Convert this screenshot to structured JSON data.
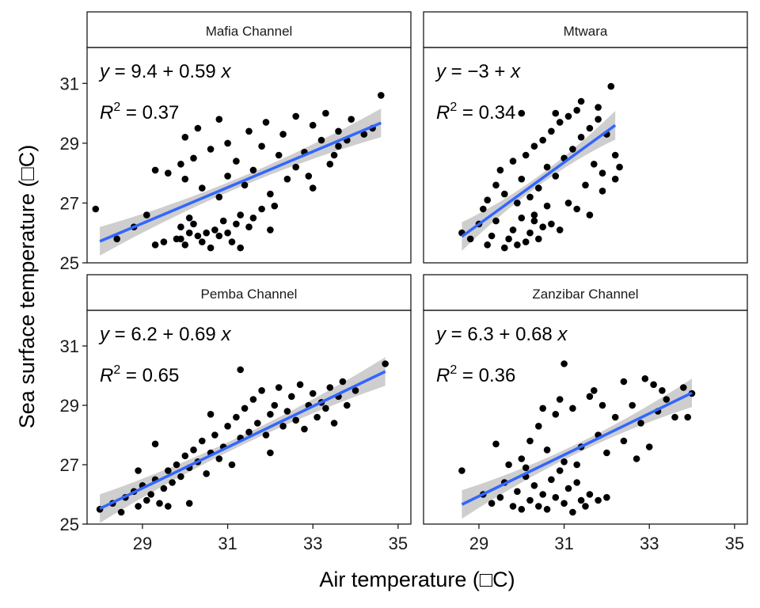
{
  "chart_data": {
    "type": "scatter",
    "xlabel": "Air temperature (□C)",
    "ylabel": "Sea surface temperature (□C)",
    "xlim": [
      27.7,
      35.3
    ],
    "ylim": [
      25.0,
      32.2
    ],
    "x_ticks": [
      "29",
      "31",
      "33",
      "35"
    ],
    "y_ticks": [
      "25",
      "27",
      "29",
      "31"
    ],
    "grid": false,
    "colors": {
      "points": "#000000",
      "fit_line": "#3366FF",
      "confidence_band": "#BEBEBE",
      "strip_bg": "#FFFFFF"
    },
    "panels": [
      {
        "name": "Mafia Channel",
        "equation": {
          "y": "y",
          "eq": " = 9.4 + 0.59 ",
          "x": "x"
        },
        "r2": {
          "label": "R",
          "sup": "2",
          "value": " = 0.37"
        },
        "fit": {
          "x": [
            28.0,
            34.6
          ],
          "y": [
            25.72,
            29.68
          ]
        },
        "points": [
          [
            27.9,
            26.8
          ],
          [
            28.4,
            25.8
          ],
          [
            28.8,
            26.2
          ],
          [
            29.1,
            26.6
          ],
          [
            29.3,
            25.6
          ],
          [
            29.5,
            25.7
          ],
          [
            29.8,
            25.8
          ],
          [
            29.9,
            26.2
          ],
          [
            29.9,
            25.8
          ],
          [
            30.0,
            25.6
          ],
          [
            30.1,
            26.0
          ],
          [
            30.1,
            26.5
          ],
          [
            30.2,
            26.3
          ],
          [
            30.3,
            25.9
          ],
          [
            30.4,
            25.7
          ],
          [
            30.5,
            26.0
          ],
          [
            30.6,
            25.5
          ],
          [
            30.7,
            26.1
          ],
          [
            30.8,
            25.9
          ],
          [
            30.9,
            26.4
          ],
          [
            31.0,
            26.0
          ],
          [
            31.1,
            25.7
          ],
          [
            31.2,
            26.3
          ],
          [
            31.3,
            25.5
          ],
          [
            31.5,
            26.2
          ],
          [
            31.6,
            26.5
          ],
          [
            31.8,
            26.8
          ],
          [
            32.0,
            26.1
          ],
          [
            29.3,
            28.1
          ],
          [
            29.6,
            28.0
          ],
          [
            29.9,
            28.3
          ],
          [
            30.0,
            27.8
          ],
          [
            30.2,
            28.5
          ],
          [
            30.4,
            27.5
          ],
          [
            30.6,
            28.8
          ],
          [
            30.8,
            27.2
          ],
          [
            31.0,
            27.9
          ],
          [
            31.2,
            28.4
          ],
          [
            31.4,
            27.6
          ],
          [
            31.6,
            28.1
          ],
          [
            31.8,
            28.9
          ],
          [
            32.0,
            27.3
          ],
          [
            32.2,
            28.6
          ],
          [
            32.4,
            27.8
          ],
          [
            32.6,
            28.2
          ],
          [
            32.8,
            28.7
          ],
          [
            33.0,
            27.5
          ],
          [
            33.2,
            29.1
          ],
          [
            33.4,
            28.3
          ],
          [
            33.6,
            28.9
          ],
          [
            30.0,
            29.2
          ],
          [
            30.3,
            29.5
          ],
          [
            30.8,
            29.8
          ],
          [
            31.0,
            29.0
          ],
          [
            31.5,
            29.4
          ],
          [
            31.9,
            29.7
          ],
          [
            32.3,
            29.3
          ],
          [
            32.6,
            29.9
          ],
          [
            33.0,
            29.6
          ],
          [
            33.3,
            30.0
          ],
          [
            33.6,
            29.4
          ],
          [
            33.9,
            29.8
          ],
          [
            34.2,
            29.3
          ],
          [
            34.4,
            29.5
          ],
          [
            34.6,
            30.6
          ],
          [
            33.8,
            29.1
          ],
          [
            33.5,
            28.6
          ],
          [
            32.9,
            27.9
          ],
          [
            32.1,
            26.9
          ],
          [
            31.3,
            26.6
          ]
        ]
      },
      {
        "name": "Mtwara",
        "equation": {
          "y": "y",
          "eq": " = −3 + ",
          "x": "x"
        },
        "r2": {
          "label": "R",
          "sup": "2",
          "value": " = 0.34"
        },
        "fit": {
          "x": [
            28.6,
            32.2
          ],
          "y": [
            25.88,
            29.6
          ]
        },
        "points": [
          [
            28.6,
            26.0
          ],
          [
            28.8,
            25.8
          ],
          [
            29.0,
            26.3
          ],
          [
            29.2,
            25.6
          ],
          [
            29.3,
            25.9
          ],
          [
            29.4,
            26.4
          ],
          [
            29.6,
            25.5
          ],
          [
            29.7,
            25.8
          ],
          [
            29.8,
            26.1
          ],
          [
            29.9,
            25.6
          ],
          [
            30.0,
            26.5
          ],
          [
            30.1,
            25.7
          ],
          [
            30.2,
            26.0
          ],
          [
            30.3,
            26.6
          ],
          [
            30.4,
            25.8
          ],
          [
            30.5,
            26.2
          ],
          [
            30.6,
            26.9
          ],
          [
            30.7,
            26.3
          ],
          [
            29.2,
            27.1
          ],
          [
            29.4,
            27.6
          ],
          [
            29.5,
            28.1
          ],
          [
            29.6,
            27.3
          ],
          [
            29.8,
            28.4
          ],
          [
            30.0,
            27.8
          ],
          [
            30.1,
            28.6
          ],
          [
            30.2,
            27.2
          ],
          [
            30.3,
            28.9
          ],
          [
            30.4,
            27.5
          ],
          [
            30.5,
            29.1
          ],
          [
            30.6,
            28.2
          ],
          [
            30.7,
            29.4
          ],
          [
            30.8,
            27.9
          ],
          [
            30.9,
            29.7
          ],
          [
            31.0,
            28.5
          ],
          [
            31.1,
            29.9
          ],
          [
            31.2,
            28.8
          ],
          [
            31.3,
            30.1
          ],
          [
            31.4,
            29.2
          ],
          [
            31.5,
            27.6
          ],
          [
            31.6,
            29.5
          ],
          [
            31.7,
            28.3
          ],
          [
            31.8,
            29.8
          ],
          [
            31.9,
            28.0
          ],
          [
            32.0,
            29.3
          ],
          [
            32.1,
            30.9
          ],
          [
            32.2,
            28.6
          ],
          [
            32.3,
            28.2
          ],
          [
            30.8,
            30.0
          ],
          [
            31.4,
            30.4
          ],
          [
            31.8,
            30.2
          ],
          [
            31.1,
            27.0
          ],
          [
            31.6,
            26.6
          ],
          [
            30.9,
            26.1
          ],
          [
            31.3,
            26.8
          ],
          [
            31.9,
            27.4
          ],
          [
            32.2,
            27.8
          ],
          [
            29.9,
            27.0
          ],
          [
            30.3,
            26.4
          ],
          [
            29.1,
            26.8
          ],
          [
            30.0,
            30.0
          ]
        ]
      },
      {
        "name": "Pemba Channel",
        "equation": {
          "y": "y",
          "eq": " = 6.2 + 0.69 ",
          "x": "x"
        },
        "r2": {
          "label": "R",
          "sup": "2",
          "value": " = 0.65"
        },
        "fit": {
          "x": [
            28.0,
            34.7
          ],
          "y": [
            25.52,
            30.14
          ]
        },
        "points": [
          [
            28.0,
            25.5
          ],
          [
            28.3,
            25.7
          ],
          [
            28.5,
            25.4
          ],
          [
            28.6,
            25.9
          ],
          [
            28.8,
            26.1
          ],
          [
            28.9,
            25.6
          ],
          [
            29.0,
            26.3
          ],
          [
            29.1,
            25.8
          ],
          [
            29.2,
            26.0
          ],
          [
            29.3,
            26.5
          ],
          [
            29.4,
            25.7
          ],
          [
            29.5,
            26.2
          ],
          [
            29.6,
            26.8
          ],
          [
            29.7,
            26.4
          ],
          [
            29.8,
            27.0
          ],
          [
            29.9,
            26.6
          ],
          [
            30.0,
            27.3
          ],
          [
            30.1,
            26.9
          ],
          [
            30.2,
            27.5
          ],
          [
            30.3,
            27.1
          ],
          [
            30.4,
            27.8
          ],
          [
            30.5,
            26.7
          ],
          [
            30.6,
            27.4
          ],
          [
            30.7,
            28.0
          ],
          [
            30.8,
            27.2
          ],
          [
            30.9,
            27.6
          ],
          [
            31.0,
            28.3
          ],
          [
            31.1,
            27.0
          ],
          [
            31.2,
            28.6
          ],
          [
            31.3,
            27.9
          ],
          [
            31.4,
            28.9
          ],
          [
            31.5,
            28.1
          ],
          [
            31.6,
            29.2
          ],
          [
            31.7,
            28.4
          ],
          [
            31.8,
            29.5
          ],
          [
            31.9,
            28.0
          ],
          [
            32.0,
            28.7
          ],
          [
            32.1,
            29.0
          ],
          [
            32.2,
            29.6
          ],
          [
            32.3,
            28.3
          ],
          [
            32.4,
            28.8
          ],
          [
            32.5,
            29.3
          ],
          [
            32.6,
            28.5
          ],
          [
            32.7,
            29.7
          ],
          [
            32.8,
            28.2
          ],
          [
            32.9,
            29.0
          ],
          [
            33.0,
            29.4
          ],
          [
            33.1,
            28.6
          ],
          [
            33.2,
            29.1
          ],
          [
            33.3,
            28.9
          ],
          [
            33.4,
            29.6
          ],
          [
            33.5,
            28.4
          ],
          [
            33.6,
            29.3
          ],
          [
            33.7,
            29.8
          ],
          [
            33.8,
            29.0
          ],
          [
            34.0,
            29.5
          ],
          [
            34.7,
            30.4
          ],
          [
            31.3,
            30.2
          ],
          [
            29.3,
            27.7
          ],
          [
            30.6,
            28.7
          ],
          [
            28.9,
            26.8
          ],
          [
            32.0,
            27.4
          ],
          [
            30.1,
            25.7
          ],
          [
            29.6,
            25.6
          ]
        ]
      },
      {
        "name": "Zanzibar Channel",
        "equation": {
          "y": "y",
          "eq": " = 6.3 + 0.68 ",
          "x": "x"
        },
        "r2": {
          "label": "R",
          "sup": "2",
          "value": " = 0.36"
        },
        "fit": {
          "x": [
            28.6,
            34.0
          ],
          "y": [
            25.66,
            29.42
          ]
        },
        "points": [
          [
            28.6,
            26.8
          ],
          [
            29.1,
            26.0
          ],
          [
            29.3,
            25.7
          ],
          [
            29.5,
            25.9
          ],
          [
            29.6,
            26.4
          ],
          [
            29.8,
            25.6
          ],
          [
            29.9,
            26.1
          ],
          [
            30.0,
            25.5
          ],
          [
            30.1,
            26.6
          ],
          [
            30.2,
            25.8
          ],
          [
            30.3,
            26.3
          ],
          [
            30.4,
            25.6
          ],
          [
            30.5,
            26.0
          ],
          [
            30.6,
            25.5
          ],
          [
            30.7,
            26.5
          ],
          [
            30.8,
            25.9
          ],
          [
            30.9,
            26.8
          ],
          [
            31.0,
            25.7
          ],
          [
            31.1,
            26.2
          ],
          [
            31.2,
            25.4
          ],
          [
            31.3,
            26.4
          ],
          [
            31.4,
            25.8
          ],
          [
            31.5,
            25.6
          ],
          [
            31.6,
            26.0
          ],
          [
            31.8,
            25.8
          ],
          [
            32.0,
            25.9
          ],
          [
            30.0,
            27.2
          ],
          [
            30.2,
            27.8
          ],
          [
            30.4,
            28.3
          ],
          [
            30.6,
            27.5
          ],
          [
            30.8,
            28.7
          ],
          [
            31.0,
            27.1
          ],
          [
            31.2,
            28.9
          ],
          [
            31.4,
            27.6
          ],
          [
            31.6,
            29.3
          ],
          [
            31.8,
            28.0
          ],
          [
            32.0,
            27.4
          ],
          [
            32.2,
            28.6
          ],
          [
            32.4,
            27.8
          ],
          [
            32.6,
            29.0
          ],
          [
            32.8,
            28.4
          ],
          [
            33.0,
            27.6
          ],
          [
            33.2,
            28.8
          ],
          [
            33.4,
            29.2
          ],
          [
            33.6,
            28.6
          ],
          [
            33.8,
            29.6
          ],
          [
            34.0,
            29.4
          ],
          [
            32.4,
            29.8
          ],
          [
            32.9,
            29.9
          ],
          [
            33.3,
            29.5
          ],
          [
            31.0,
            30.4
          ],
          [
            31.7,
            29.5
          ],
          [
            30.9,
            29.2
          ],
          [
            30.5,
            28.9
          ],
          [
            29.4,
            27.7
          ],
          [
            29.7,
            27.0
          ],
          [
            31.9,
            29.0
          ],
          [
            32.7,
            27.2
          ],
          [
            33.1,
            29.7
          ],
          [
            33.9,
            28.6
          ],
          [
            31.3,
            27.0
          ],
          [
            30.1,
            26.9
          ]
        ]
      }
    ]
  }
}
